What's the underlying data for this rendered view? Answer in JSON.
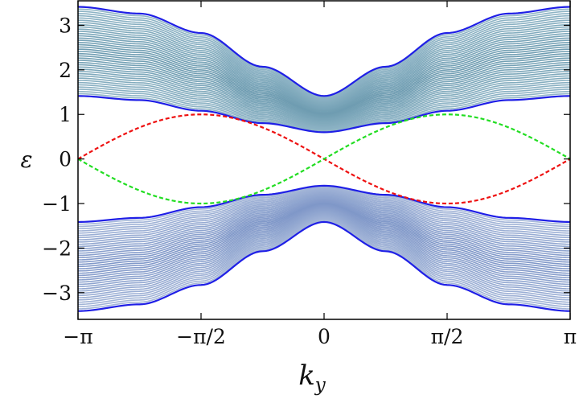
{
  "chart_data": {
    "type": "line",
    "title": "",
    "xlabel": "k",
    "xlabel_sub": "y",
    "ylabel": "ε",
    "xlim": [
      -3.14159,
      3.14159
    ],
    "ylim": [
      -3.6,
      3.55
    ],
    "x_ticks": [
      {
        "value": -3.14159,
        "label": "−π"
      },
      {
        "value": -1.5708,
        "label": "−π/2"
      },
      {
        "value": 0,
        "label": "0"
      },
      {
        "value": 1.5708,
        "label": "π/2"
      },
      {
        "value": 3.14159,
        "label": "π"
      }
    ],
    "y_ticks": [
      {
        "value": 3,
        "label": "3"
      },
      {
        "value": 2,
        "label": "2"
      },
      {
        "value": 1,
        "label": "1"
      },
      {
        "value": 0,
        "label": "0"
      },
      {
        "value": -1,
        "label": "−1"
      },
      {
        "value": -2,
        "label": "−2"
      },
      {
        "value": -3,
        "label": "−3"
      }
    ],
    "grid": false,
    "legend": "none",
    "bulk_band_count": 40,
    "series": [
      {
        "kind": "band-edge",
        "color": "#1f1fe6",
        "x": [
          -3.14159,
          -2.35619,
          -1.5708,
          -0.7854,
          0,
          0.7854,
          1.5708,
          2.35619,
          3.14159
        ],
        "y": [
          3.414,
          3.263,
          2.828,
          2.071,
          1.414,
          2.071,
          2.828,
          3.263,
          3.414
        ]
      },
      {
        "kind": "band-edge",
        "color": "#1f1fe6",
        "x": [
          -3.14159,
          -2.35619,
          -1.5708,
          -0.7854,
          0,
          0.7854,
          1.5708,
          2.35619,
          3.14159
        ],
        "y": [
          1.414,
          1.322,
          1.082,
          0.804,
          0.6,
          0.804,
          1.082,
          1.322,
          1.414
        ]
      },
      {
        "kind": "band-edge",
        "color": "#1f1fe6",
        "x": [
          -3.14159,
          -2.35619,
          -1.5708,
          -0.7854,
          0,
          0.7854,
          1.5708,
          2.35619,
          3.14159
        ],
        "y": [
          -1.414,
          -1.322,
          -1.082,
          -0.804,
          -0.6,
          -0.804,
          -1.082,
          -1.322,
          -1.414
        ]
      },
      {
        "kind": "band-edge",
        "color": "#1f1fe6",
        "x": [
          -3.14159,
          -2.35619,
          -1.5708,
          -0.7854,
          0,
          0.7854,
          1.5708,
          2.35619,
          3.14159
        ],
        "y": [
          -3.414,
          -3.263,
          -2.828,
          -2.071,
          -1.414,
          -2.071,
          -2.828,
          -3.263,
          -3.414
        ]
      },
      {
        "kind": "edge-state",
        "color": "#ee1111",
        "x": [
          -3.14159,
          -2.35619,
          -1.5708,
          -0.7854,
          0,
          0.7854,
          1.5708,
          2.35619,
          3.14159
        ],
        "y": [
          0,
          0.707,
          1,
          0.707,
          0,
          -0.707,
          -1,
          -0.707,
          0
        ]
      },
      {
        "kind": "edge-state",
        "color": "#22dd22",
        "x": [
          -3.14159,
          -2.35619,
          -1.5708,
          -0.7854,
          0,
          0.7854,
          1.5708,
          2.35619,
          3.14159
        ],
        "y": [
          0,
          -0.707,
          -1,
          -0.707,
          0,
          0.707,
          1,
          0.707,
          0
        ]
      }
    ],
    "colors": {
      "band_edge": "#1f1fe6",
      "upper_bulk_dark": "#6e9cb1",
      "upper_bulk_light": "#a9c8d6",
      "lower_bulk_dark": "#7f97c8",
      "lower_bulk_light": "#bfcde4",
      "edge_red": "#ee1111",
      "edge_green": "#22dd22"
    }
  }
}
